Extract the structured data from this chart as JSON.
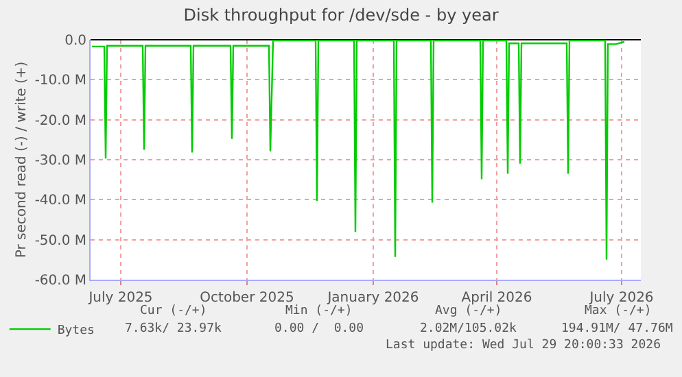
{
  "chart_data": {
    "type": "line",
    "title": "Disk throughput for /dev/sde - by year",
    "ylabel": "Pr second read (-) / write (+)",
    "xlim": [
      "2025-06-09",
      "2026-07-15"
    ],
    "xticks": [
      {
        "value": "2025-07-01",
        "label": "July 2025"
      },
      {
        "value": "2025-10-01",
        "label": "October 2025"
      },
      {
        "value": "2026-01-01",
        "label": "January 2026"
      },
      {
        "value": "2026-04-01",
        "label": "April 2026"
      },
      {
        "value": "2026-07-01",
        "label": "July 2026"
      }
    ],
    "ylim": [
      -60,
      0
    ],
    "yticks": [
      {
        "value": -60,
        "label": "-60.0 M"
      },
      {
        "value": -50,
        "label": "-50.0 M"
      },
      {
        "value": -40,
        "label": "-40.0 M"
      },
      {
        "value": -30,
        "label": "-30.0 M"
      },
      {
        "value": -20,
        "label": "-20.0 M"
      },
      {
        "value": -10,
        "label": "-10.0 M"
      },
      {
        "value": 0,
        "label": "0.0"
      }
    ],
    "grid": true,
    "legend": "bottom left",
    "marker": "none",
    "line_style": "solid",
    "series": [
      {
        "name": "Bytes",
        "color": "#00cc00",
        "x": [
          "2025-06-10",
          "2025-06-19",
          "2025-06-20",
          "2025-06-21",
          "2025-07-17",
          "2025-07-18",
          "2025-07-19",
          "2025-08-21",
          "2025-08-22",
          "2025-08-23",
          "2025-09-19",
          "2025-09-20",
          "2025-09-21",
          "2025-10-17",
          "2025-10-18",
          "2025-10-20",
          "2025-11-20",
          "2025-11-21",
          "2025-11-22",
          "2025-12-18",
          "2025-12-19",
          "2025-12-20",
          "2026-01-16",
          "2026-01-17",
          "2026-01-18",
          "2026-02-12",
          "2026-02-13",
          "2026-02-14",
          "2026-03-20",
          "2026-03-21",
          "2026-03-22",
          "2026-04-08",
          "2026-04-09",
          "2026-04-10",
          "2026-04-17",
          "2026-04-18",
          "2026-04-19",
          "2026-05-22",
          "2026-05-23",
          "2026-05-24",
          "2026-06-19",
          "2026-06-20",
          "2026-06-21",
          "2026-06-27",
          "2026-07-03"
        ],
        "values": [
          -1.7,
          -1.7,
          -29.7,
          -1.5,
          -1.5,
          -27.5,
          -1.5,
          -1.5,
          -28.2,
          -1.5,
          -1.5,
          -24.8,
          -1.5,
          -1.5,
          -27.9,
          -0.2,
          -0.2,
          -40.3,
          -0.2,
          -0.2,
          -48.1,
          -0.2,
          -0.2,
          -54.3,
          -0.2,
          -0.2,
          -40.7,
          -0.2,
          -0.2,
          -34.9,
          -0.2,
          -0.2,
          -33.5,
          -0.9,
          -0.9,
          -31.0,
          -0.9,
          -0.9,
          -33.5,
          -0.2,
          -0.2,
          -55.0,
          -1.1,
          -1.1,
          -0.5
        ]
      }
    ],
    "annotations": [
      "Cur (-/+)",
      "Min (-/+)",
      "Avg (-/+)",
      "Max (-/+)",
      "7.63k/ 23.97k",
      "0.00 /  0.00",
      "2.02M/105.02k",
      "194.91M/ 47.76M",
      "Last update: Wed Jul 29 20:00:33 2026"
    ]
  }
}
